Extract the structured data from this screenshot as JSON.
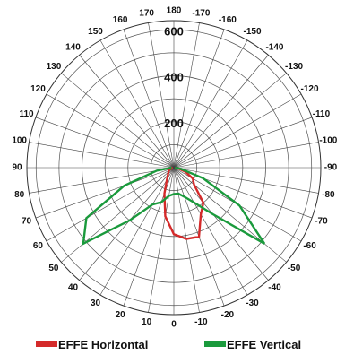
{
  "chart_data": {
    "type": "polar",
    "title": "",
    "angle_labels": [
      {
        "angle": 180,
        "label": "180"
      },
      {
        "angle": 170,
        "label": "170"
      },
      {
        "angle": 160,
        "label": "160"
      },
      {
        "angle": 150,
        "label": "150"
      },
      {
        "angle": 140,
        "label": "140"
      },
      {
        "angle": 130,
        "label": "130"
      },
      {
        "angle": 120,
        "label": "120"
      },
      {
        "angle": 110,
        "label": "110"
      },
      {
        "angle": 100,
        "label": "100"
      },
      {
        "angle": 90,
        "label": "90"
      },
      {
        "angle": 80,
        "label": "80"
      },
      {
        "angle": 70,
        "label": "70"
      },
      {
        "angle": 60,
        "label": "60"
      },
      {
        "angle": 50,
        "label": "50"
      },
      {
        "angle": 40,
        "label": "40"
      },
      {
        "angle": 30,
        "label": "30"
      },
      {
        "angle": 20,
        "label": "20"
      },
      {
        "angle": 10,
        "label": "10"
      },
      {
        "angle": 0,
        "label": "0"
      },
      {
        "angle": -10,
        "label": "-10"
      },
      {
        "angle": -20,
        "label": "-20"
      },
      {
        "angle": -30,
        "label": "-30"
      },
      {
        "angle": -40,
        "label": "-40"
      },
      {
        "angle": -50,
        "label": "-50"
      },
      {
        "angle": -60,
        "label": "-60"
      },
      {
        "angle": -70,
        "label": "-70"
      },
      {
        "angle": -80,
        "label": "-80"
      },
      {
        "angle": -90,
        "label": "-90"
      },
      {
        "angle": -100,
        "label": "-100"
      },
      {
        "angle": -110,
        "label": "-110"
      },
      {
        "angle": -120,
        "label": "-120"
      },
      {
        "angle": -130,
        "label": "-130"
      },
      {
        "angle": -140,
        "label": "-140"
      },
      {
        "angle": -150,
        "label": "-150"
      },
      {
        "angle": -160,
        "label": "-160"
      },
      {
        "angle": -170,
        "label": "-170"
      }
    ],
    "radial_ticks": [
      {
        "value": 200,
        "label": "200"
      },
      {
        "value": 400,
        "label": "400"
      },
      {
        "value": 600,
        "label": "600"
      }
    ],
    "r_max": 640,
    "series": [
      {
        "name": "EFFE Horizontal",
        "color": "#d42a2a",
        "points": [
          {
            "angle": -90,
            "value": 5
          },
          {
            "angle": -80,
            "value": 20
          },
          {
            "angle": -70,
            "value": 55
          },
          {
            "angle": -60,
            "value": 95
          },
          {
            "angle": -50,
            "value": 115
          },
          {
            "angle": -40,
            "value": 200
          },
          {
            "angle": -30,
            "value": 235
          },
          {
            "angle": -20,
            "value": 320
          },
          {
            "angle": -10,
            "value": 315
          },
          {
            "angle": 0,
            "value": 290
          },
          {
            "angle": 10,
            "value": 215
          },
          {
            "angle": 20,
            "value": 120
          },
          {
            "angle": 30,
            "value": 60
          },
          {
            "angle": 40,
            "value": 40
          },
          {
            "angle": 50,
            "value": 30
          },
          {
            "angle": 60,
            "value": 25
          },
          {
            "angle": 70,
            "value": 15
          },
          {
            "angle": 80,
            "value": 10
          },
          {
            "angle": 90,
            "value": 5
          }
        ]
      },
      {
        "name": "EFFE Vertical",
        "color": "#1a9a3c",
        "points": [
          {
            "angle": -90,
            "value": 5
          },
          {
            "angle": -80,
            "value": 30
          },
          {
            "angle": -70,
            "value": 135
          },
          {
            "angle": -60,
            "value": 330
          },
          {
            "angle": -50,
            "value": 515
          },
          {
            "angle": -40,
            "value": 265
          },
          {
            "angle": -30,
            "value": 175
          },
          {
            "angle": -20,
            "value": 135
          },
          {
            "angle": -10,
            "value": 115
          },
          {
            "angle": 0,
            "value": 115
          },
          {
            "angle": 10,
            "value": 125
          },
          {
            "angle": 20,
            "value": 160
          },
          {
            "angle": 30,
            "value": 185
          },
          {
            "angle": 40,
            "value": 300
          },
          {
            "angle": 50,
            "value": 515
          },
          {
            "angle": 60,
            "value": 440
          },
          {
            "angle": 70,
            "value": 230
          },
          {
            "angle": 80,
            "value": 75
          },
          {
            "angle": 90,
            "value": 10
          }
        ]
      }
    ],
    "legend_position": "bottom"
  }
}
